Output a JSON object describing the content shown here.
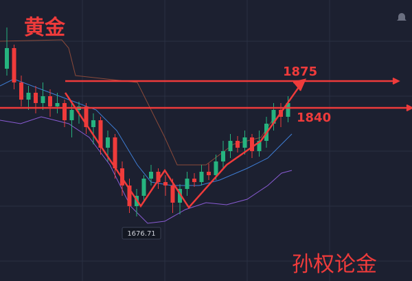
{
  "chart_data": {
    "type": "candlestick",
    "title": "黄金",
    "watermark": "孙权论金",
    "open": [
      1892,
      1922,
      1872,
      1847,
      1857,
      1842,
      1852,
      1837,
      1842,
      1817,
      1832,
      1837,
      1807,
      1817,
      1777,
      1792,
      1747,
      1722,
      1692,
      1707,
      1732,
      1742,
      1727,
      1722,
      1697,
      1717,
      1732,
      1727,
      1742,
      1737,
      1757,
      1772,
      1787,
      1777,
      1792,
      1772,
      1787,
      1812,
      1832,
      1822
    ],
    "high": [
      1952,
      1927,
      1882,
      1867,
      1867,
      1872,
      1862,
      1857,
      1847,
      1842,
      1844,
      1842,
      1827,
      1822,
      1802,
      1797,
      1757,
      1732,
      1717,
      1737,
      1752,
      1747,
      1737,
      1732,
      1724,
      1742,
      1740,
      1752,
      1754,
      1767,
      1787,
      1797,
      1794,
      1802,
      1797,
      1802,
      1822,
      1842,
      1842,
      1852
    ],
    "low": [
      1882,
      1862,
      1837,
      1832,
      1827,
      1832,
      1822,
      1827,
      1807,
      1792,
      1812,
      1797,
      1782,
      1767,
      1757,
      1732,
      1707,
      1682,
      1677,
      1697,
      1722,
      1717,
      1707,
      1682,
      1680,
      1707,
      1720,
      1722,
      1730,
      1730,
      1747,
      1762,
      1770,
      1767,
      1762,
      1764,
      1777,
      1802,
      1807,
      1814
    ],
    "close": [
      1922,
      1872,
      1847,
      1857,
      1842,
      1852,
      1837,
      1842,
      1817,
      1832,
      1837,
      1807,
      1817,
      1777,
      1792,
      1747,
      1722,
      1692,
      1707,
      1732,
      1742,
      1727,
      1722,
      1697,
      1717,
      1732,
      1727,
      1742,
      1737,
      1757,
      1772,
      1787,
      1777,
      1792,
      1772,
      1787,
      1812,
      1832,
      1822,
      1842
    ],
    "ylim": [
      1583,
      1992
    ],
    "up_color": "#26b37f",
    "down_color": "#ef3b3b",
    "annotations": [
      {
        "text": "1875"
      },
      {
        "text": "1840"
      },
      {
        "text": "1676.71"
      }
    ]
  }
}
